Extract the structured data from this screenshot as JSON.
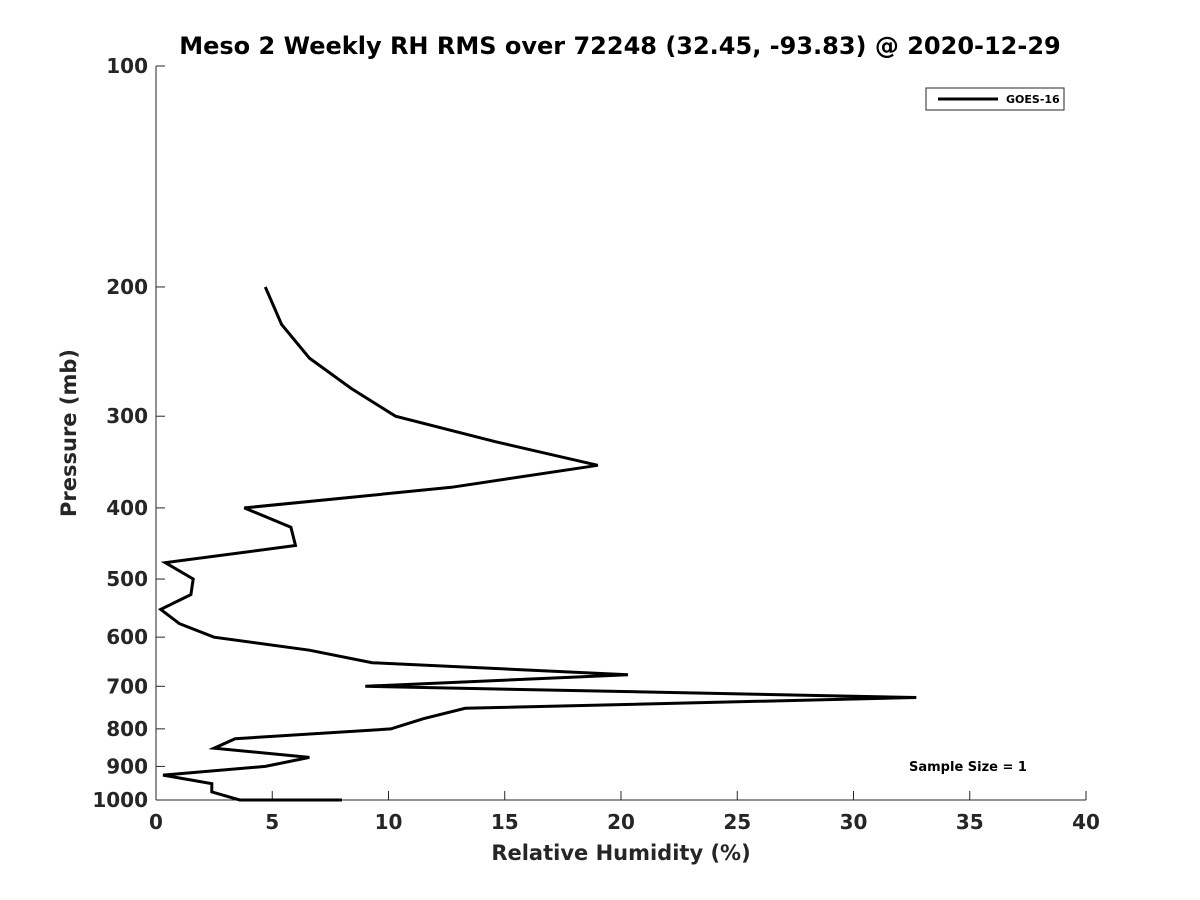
{
  "chart_data": {
    "type": "line",
    "title": "Meso 2 Weekly RH RMS over 72248 (32.45, -93.83) @ 2020-12-29",
    "xlabel": "Relative Humidity (%)",
    "ylabel": "Pressure (mb)",
    "xlim": [
      0,
      40
    ],
    "ylim": [
      100,
      1000
    ],
    "y_scale": "log",
    "y_reversed": true,
    "grid": false,
    "legend_position": "top-right",
    "x_ticks": [
      "0",
      "5",
      "10",
      "15",
      "20",
      "25",
      "30",
      "35",
      "40"
    ],
    "y_ticks": [
      "100",
      "200",
      "300",
      "400",
      "500",
      "600",
      "700",
      "800",
      "900",
      "1000"
    ],
    "annotation": "Sample Size = 1",
    "series": [
      {
        "name": "GOES-16",
        "color": "#000000",
        "points": [
          [
            4.7,
            200
          ],
          [
            5.4,
            225
          ],
          [
            6.6,
            250
          ],
          [
            8.4,
            275
          ],
          [
            10.3,
            300
          ],
          [
            14.6,
            325
          ],
          [
            19.0,
            350
          ],
          [
            12.7,
            375
          ],
          [
            3.8,
            400
          ],
          [
            5.8,
            425
          ],
          [
            6.0,
            450
          ],
          [
            0.4,
            475
          ],
          [
            1.6,
            500
          ],
          [
            1.5,
            525
          ],
          [
            0.2,
            550
          ],
          [
            1.0,
            575
          ],
          [
            2.5,
            600
          ],
          [
            6.6,
            625
          ],
          [
            9.3,
            650
          ],
          [
            20.3,
            675
          ],
          [
            9.0,
            700
          ],
          [
            32.7,
            725
          ],
          [
            13.3,
            750
          ],
          [
            11.5,
            775
          ],
          [
            10.1,
            800
          ],
          [
            3.4,
            825
          ],
          [
            2.5,
            850
          ],
          [
            6.6,
            875
          ],
          [
            4.7,
            900
          ],
          [
            0.3,
            925
          ],
          [
            2.4,
            950
          ],
          [
            2.4,
            975
          ],
          [
            3.6,
            1000
          ],
          [
            4.6,
            1000
          ],
          [
            6.6,
            1000
          ],
          [
            8.0,
            1000
          ]
        ]
      }
    ]
  }
}
